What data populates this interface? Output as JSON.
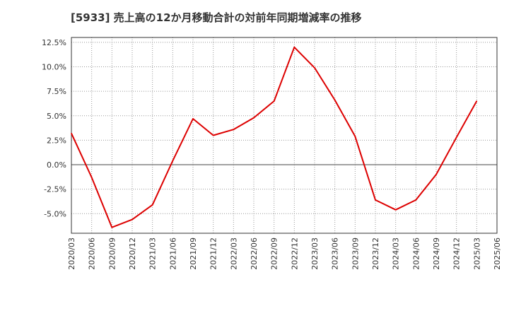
{
  "chart_data": {
    "type": "line",
    "title": "[5933]  売上高の12か月移動合計の対前年同期増減率の推移",
    "xlabel": "",
    "ylabel": "",
    "grid": true,
    "ylim": [
      -7.0,
      13.0
    ],
    "yticks": [
      12.5,
      10.0,
      7.5,
      5.0,
      2.5,
      0.0,
      -2.5,
      -5.0
    ],
    "ytick_labels": [
      "12.5%",
      "10.0%",
      "7.5%",
      "5.0%",
      "2.5%",
      "0.0%",
      "-2.5%",
      "-5.0%"
    ],
    "categories": [
      "2020/03",
      "2020/06",
      "2020/09",
      "2020/12",
      "2021/03",
      "2021/06",
      "2021/09",
      "2021/12",
      "2022/03",
      "2022/06",
      "2022/09",
      "2022/12",
      "2023/03",
      "2023/06",
      "2023/09",
      "2023/12",
      "2024/03",
      "2024/06",
      "2024/09",
      "2024/12",
      "2025/03",
      "2025/06"
    ],
    "series": [
      {
        "name": "対前年同期増減率",
        "color": "#dd0000",
        "values": [
          3.2,
          -1.3,
          -6.4,
          -5.6,
          -4.1,
          0.4,
          4.7,
          3.0,
          3.6,
          4.8,
          6.5,
          12.0,
          9.9,
          6.6,
          2.9,
          -3.6,
          -4.6,
          -3.6,
          -1.0,
          2.8,
          6.5,
          null
        ]
      }
    ]
  }
}
